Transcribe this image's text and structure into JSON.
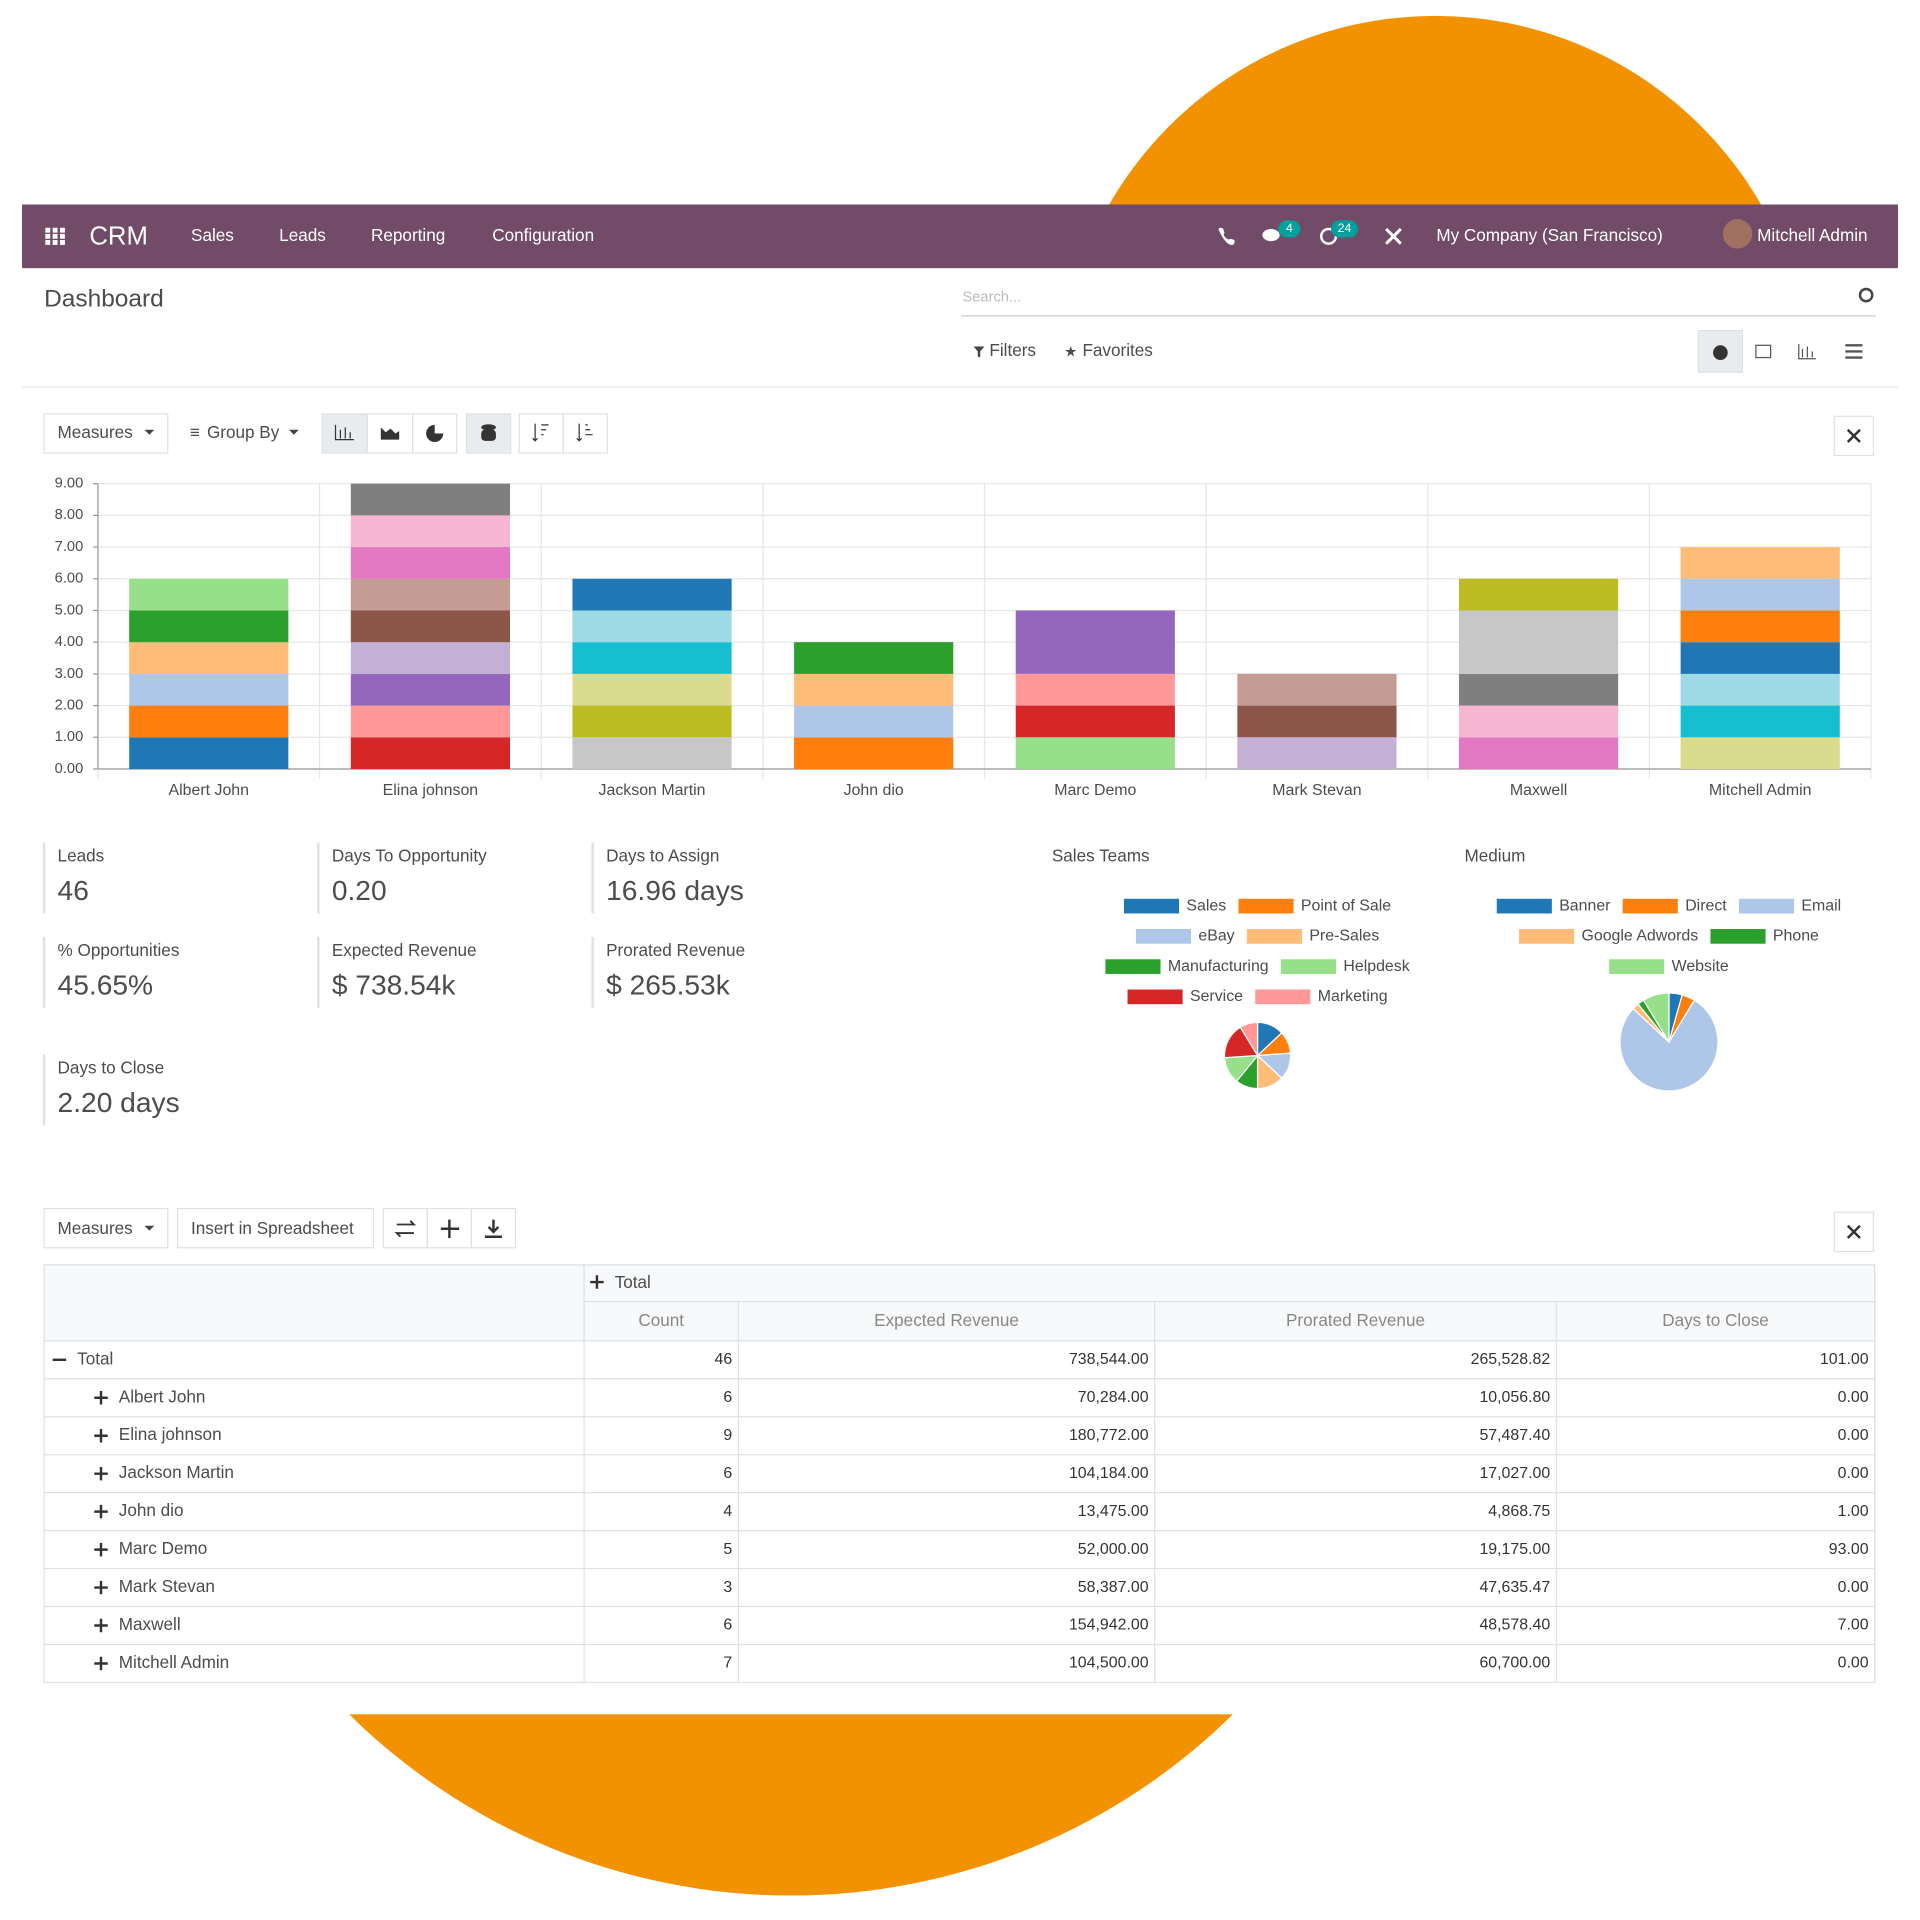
{
  "navbar": {
    "app": "CRM",
    "menu": [
      "Sales",
      "Leads",
      "Reporting",
      "Configuration"
    ],
    "chat_badge": 4,
    "activity_badge": 24,
    "company": "My Company (San Francisco)",
    "user": "Mitchell Admin"
  },
  "header": {
    "title": "Dashboard",
    "search_placeholder": "Search...",
    "filters": "Filters",
    "favorites": "Favorites"
  },
  "graph_toolbar": {
    "measures": "Measures",
    "group_by": "Group By"
  },
  "chart_data": {
    "type": "bar",
    "stacked": true,
    "categories": [
      "Albert John",
      "Elina johnson",
      "Jackson Martin",
      "John dio",
      "Marc Demo",
      "Mark Stevan",
      "Maxwell",
      "Mitchell Admin"
    ],
    "values": [
      [
        1,
        1,
        1,
        1,
        1,
        1
      ],
      [
        1,
        1,
        1,
        1,
        1,
        1,
        1,
        1,
        1
      ],
      [
        1,
        1,
        1,
        1,
        1,
        1
      ],
      [
        1,
        1,
        1,
        1
      ],
      [
        1,
        1,
        1,
        2
      ],
      [
        1,
        1,
        1
      ],
      [
        1,
        1,
        1,
        2,
        1
      ],
      [
        1,
        1,
        1,
        1,
        1,
        1,
        1
      ]
    ],
    "colors": [
      [
        "#1f77b4",
        "#ff7f0e",
        "#aec7e8",
        "#ffbb78",
        "#2ca02c",
        "#98df8a"
      ],
      [
        "#d62728",
        "#ff9896",
        "#9467bd",
        "#c5b0d5",
        "#8c564b",
        "#c49c94",
        "#e377c2",
        "#f7b6d2",
        "#7f7f7f"
      ],
      [
        "#c7c7c7",
        "#bcbd22",
        "#dbdb8d",
        "#17becf",
        "#9edae5",
        "#1f77b4"
      ],
      [
        "#ff7f0e",
        "#aec7e8",
        "#ffbb78",
        "#2ca02c"
      ],
      [
        "#98df8a",
        "#d62728",
        "#ff9896",
        "#9467bd"
      ],
      [
        "#c5b0d5",
        "#8c564b",
        "#c49c94"
      ],
      [
        "#e377c2",
        "#f7b6d2",
        "#7f7f7f",
        "#c7c7c7",
        "#bcbd22"
      ],
      [
        "#dbdb8d",
        "#17becf",
        "#9edae5",
        "#1f77b4",
        "#ff7f0e",
        "#aec7e8",
        "#ffbb78"
      ]
    ],
    "ylim": [
      0,
      9
    ],
    "yticks": [
      {
        "value": 0,
        "label": "0.00"
      },
      {
        "value": 1,
        "label": "1.00"
      },
      {
        "value": 2,
        "label": "2.00"
      },
      {
        "value": 3,
        "label": "3.00"
      },
      {
        "value": 4,
        "label": "4.00"
      },
      {
        "value": 5,
        "label": "5.00"
      },
      {
        "value": 6,
        "label": "6.00"
      },
      {
        "value": 7,
        "label": "7.00"
      },
      {
        "value": 8,
        "label": "8.00"
      },
      {
        "value": 9,
        "label": "9.00"
      }
    ],
    "grid": true
  },
  "kpis": [
    {
      "label": "Leads",
      "value": "46"
    },
    {
      "label": "Days To Opportunity",
      "value": "0.20"
    },
    {
      "label": "Days to Assign",
      "value": "16.96 days"
    },
    {
      "label": "% Opportunities",
      "value": "45.65%"
    },
    {
      "label": "Expected Revenue",
      "value": "$ 738.54k"
    },
    {
      "label": "Prorated Revenue",
      "value": "$ 265.53k"
    },
    {
      "label": "Days to Close",
      "value": "2.20 days"
    }
  ],
  "pies": [
    {
      "type": "pie",
      "title": "Sales Teams",
      "labels": [
        "Sales",
        "Point of Sale",
        "eBay",
        "Pre-Sales",
        "Manufacturing",
        "Helpdesk",
        "Service",
        "Marketing"
      ],
      "colors": [
        "#1f77b4",
        "#ff7f0e",
        "#aec7e8",
        "#ffbb78",
        "#2ca02c",
        "#98df8a",
        "#d62728",
        "#ff9896"
      ],
      "values": [
        6,
        5,
        6,
        6,
        5,
        6,
        8,
        4
      ]
    },
    {
      "type": "pie",
      "title": "Medium",
      "labels": [
        "Banner",
        "Direct",
        "Email",
        "Google Adwords",
        "Phone",
        "Website"
      ],
      "colors": [
        "#1f77b4",
        "#ff7f0e",
        "#aec7e8",
        "#ffbb78",
        "#2ca02c",
        "#98df8a"
      ],
      "values": [
        2,
        2,
        36,
        1,
        1,
        4
      ]
    }
  ],
  "pivot": {
    "measures": "Measures",
    "insert": "Insert in Spreadsheet",
    "column_group": "Total",
    "columns": [
      "Count",
      "Expected Revenue",
      "Prorated Revenue",
      "Days to Close"
    ],
    "rows": [
      {
        "label": "Total",
        "cells": [
          "46",
          "738,544.00",
          "265,528.82",
          "101.00"
        ]
      },
      {
        "label": "Albert John",
        "cells": [
          "6",
          "70,284.00",
          "10,056.80",
          "0.00"
        ]
      },
      {
        "label": "Elina johnson",
        "cells": [
          "9",
          "180,772.00",
          "57,487.40",
          "0.00"
        ]
      },
      {
        "label": "Jackson Martin",
        "cells": [
          "6",
          "104,184.00",
          "17,027.00",
          "0.00"
        ]
      },
      {
        "label": "John dio",
        "cells": [
          "4",
          "13,475.00",
          "4,868.75",
          "1.00"
        ]
      },
      {
        "label": "Marc Demo",
        "cells": [
          "5",
          "52,000.00",
          "19,175.00",
          "93.00"
        ]
      },
      {
        "label": "Mark Stevan",
        "cells": [
          "3",
          "58,387.00",
          "47,635.47",
          "0.00"
        ]
      },
      {
        "label": "Maxwell",
        "cells": [
          "6",
          "154,942.00",
          "48,578.40",
          "7.00"
        ]
      },
      {
        "label": "Mitchell Admin",
        "cells": [
          "7",
          "104,500.00",
          "60,700.00",
          "0.00"
        ]
      }
    ]
  }
}
